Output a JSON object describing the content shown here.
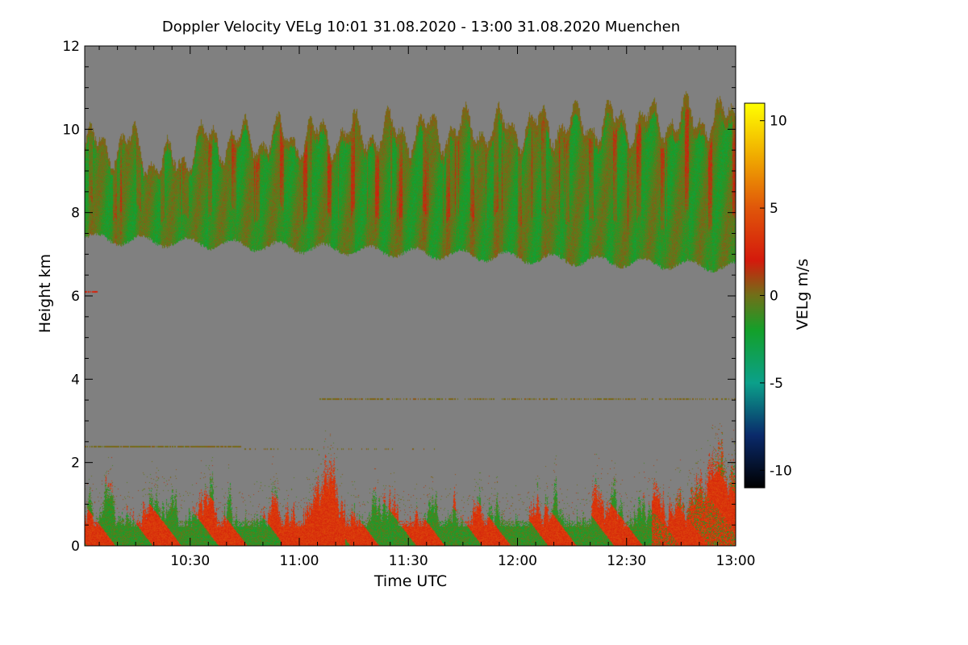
{
  "chart_data": {
    "type": "heatmap",
    "title": "Doppler Velocity VELg   10:01 31.08.2020 - 13:00 31.08.2020 Muenchen",
    "xlabel": "Time UTC",
    "ylabel": "Height km",
    "x_range_utc": [
      "10:01",
      "13:00"
    ],
    "x_ticks": [
      {
        "value": "10:30",
        "label": "10:30"
      },
      {
        "value": "11:00",
        "label": "11:00"
      },
      {
        "value": "11:30",
        "label": "11:30"
      },
      {
        "value": "12:00",
        "label": "12:00"
      },
      {
        "value": "12:30",
        "label": "12:30"
      },
      {
        "value": "13:00",
        "label": "13:00"
      }
    ],
    "ylim": [
      0,
      12
    ],
    "y_ticks": [
      0,
      2,
      4,
      6,
      8,
      10,
      12
    ],
    "colorbar": {
      "label": "VELg m/s",
      "range": [
        -11,
        11
      ],
      "ticks": [
        -10,
        -5,
        0,
        5,
        10
      ],
      "stops": [
        {
          "value": -11,
          "color": "#000000"
        },
        {
          "value": -8,
          "color": "#0a2a6b"
        },
        {
          "value": -5,
          "color": "#0ba08a"
        },
        {
          "value": -2,
          "color": "#13a02a"
        },
        {
          "value": 0,
          "color": "#707018"
        },
        {
          "value": 2,
          "color": "#d41a0c"
        },
        {
          "value": 5,
          "color": "#e0560a"
        },
        {
          "value": 8,
          "color": "#f0ac00"
        },
        {
          "value": 11,
          "color": "#ffff00"
        }
      ]
    },
    "no_data_color": "#808080",
    "features": [
      {
        "name": "cirrus layer",
        "start": "10:01",
        "end": "13:00",
        "base_km": [
          7.4,
          6.7
        ],
        "top_km": [
          9.6,
          10.3
        ],
        "dominant_velocity_ms": [
          -2,
          1
        ]
      },
      {
        "name": "boundary layer",
        "start": "10:01",
        "end": "13:00",
        "base_km": 0,
        "top_km": [
          1.1,
          2.4
        ],
        "dominant_velocity_ms": [
          -3,
          4
        ]
      }
    ]
  }
}
